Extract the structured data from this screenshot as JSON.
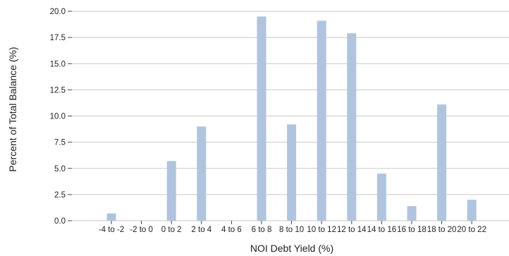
{
  "chart_data": {
    "type": "bar",
    "xlabel": "NOI Debt Yield (%)",
    "ylabel": "Percent of Total Balance (%)",
    "categories": [
      "-4 to -2",
      "-2 to 0",
      "0 to 2",
      "2 to 4",
      "4 to 6",
      "6 to 8",
      "8 to 10",
      "10 to 12",
      "12 to 14",
      "14 to 16",
      "16 to 18",
      "18 to 20",
      "20 to 22"
    ],
    "values": [
      0.7,
      0.0,
      5.7,
      9.0,
      0.0,
      19.5,
      9.2,
      19.1,
      17.9,
      4.5,
      1.4,
      11.1,
      2.0
    ],
    "ylim": [
      0,
      20
    ],
    "yticks": [
      "0.0",
      "2.5",
      "5.0",
      "7.5",
      "10.0",
      "12.5",
      "15.0",
      "17.5",
      "20.0"
    ],
    "grid": "horizontal",
    "bar_color": "#b0c4de"
  }
}
